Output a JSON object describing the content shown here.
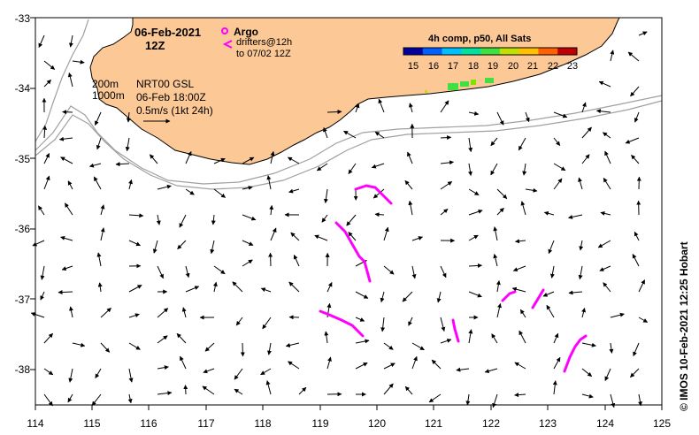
{
  "title": {
    "date": "06-Feb-2021",
    "time": "12Z"
  },
  "legend": {
    "argo_label": "Argo",
    "drifters_label": "drifters@12h",
    "drifters_to": "to 07/02 12Z",
    "depth_200": "200m",
    "depth_1000": "1000m",
    "model": "NRT00 GSL",
    "model_time": "06-Feb 18:00Z",
    "scale": "0.5m/s (1kt 24h)"
  },
  "colorbar": {
    "title": "4h comp, p50, All Sats",
    "ticks": [
      "15",
      "16",
      "17",
      "18",
      "19",
      "20",
      "21",
      "22",
      "23"
    ],
    "colors": [
      "#0000a0",
      "#0060ff",
      "#00c0ff",
      "#00e0a0",
      "#40e040",
      "#c0e000",
      "#ffc000",
      "#ff6000",
      "#c00000"
    ]
  },
  "axes": {
    "x_ticks": [
      "114",
      "115",
      "116",
      "117",
      "118",
      "119",
      "120",
      "121",
      "122",
      "123",
      "124",
      "125"
    ],
    "y_ticks": [
      "-33",
      "-34",
      "-35",
      "-36",
      "-37",
      "-38"
    ]
  },
  "colors": {
    "land": "#fcc896",
    "drifter": "#ff00ff",
    "isobath": "#a0a0a0"
  },
  "credit": "© IMOS 10-Feb-2021 12:25 Hobart"
}
